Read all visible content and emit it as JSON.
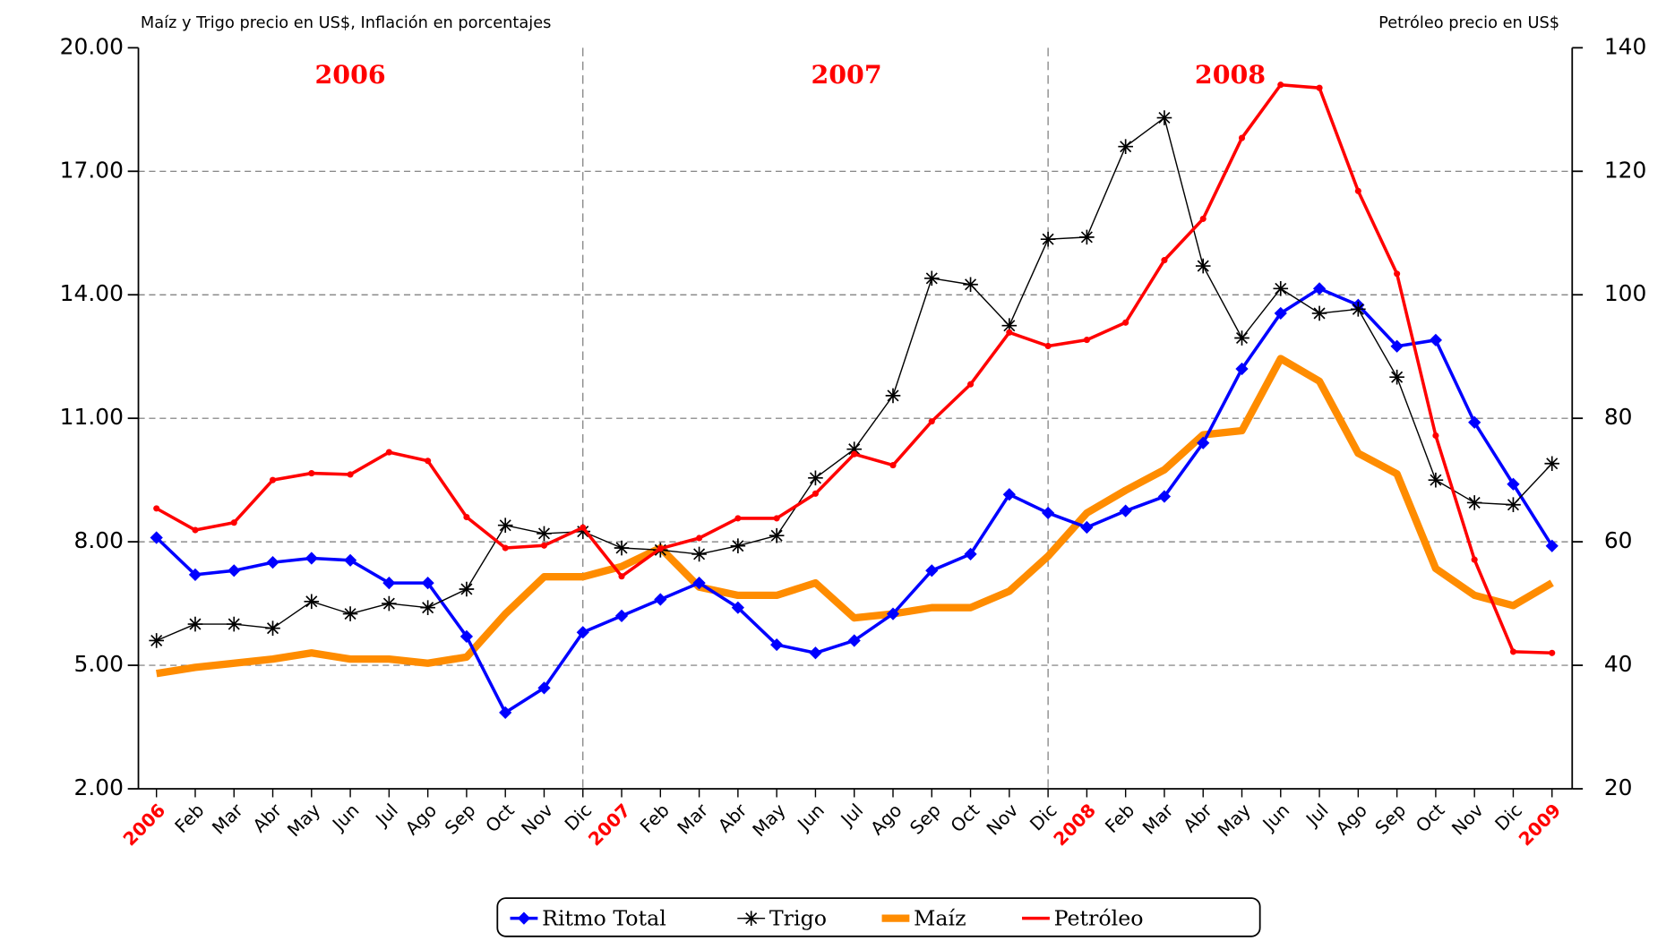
{
  "chart_data": {
    "type": "line",
    "ylabel": "Maíz y Trigo precio en US$, Inflación en porcentajes",
    "y2label": "Petróleo precio en US$",
    "annotations": [
      {
        "text": "2006",
        "category": 5
      },
      {
        "text": "2007",
        "category": 17.8
      },
      {
        "text": "2008",
        "category": 27.7
      }
    ],
    "annotation_color": "#ff0000",
    "year_label_color": "#ff0000",
    "categories": [
      "2006",
      "Feb",
      "Mar",
      "Abr",
      "May",
      "Jun",
      "Jul",
      "Ago",
      "Sep",
      "Oct",
      "Nov",
      "Dic",
      "2007",
      "Feb",
      "Mar",
      "Abr",
      "May",
      "Jun",
      "Jul",
      "Ago",
      "Sep",
      "Oct",
      "Nov",
      "Dic",
      "2008",
      "Feb",
      "Mar",
      "Abr",
      "May",
      "Jun",
      "Jul",
      "Ago",
      "Sep",
      "Oct",
      "Nov",
      "Dic",
      "2009"
    ],
    "year_dividers": [
      11,
      23
    ],
    "ylim": [
      2,
      20
    ],
    "yticks": [
      {
        "value": 2,
        "label": "2.00"
      },
      {
        "value": 5,
        "label": "5.00"
      },
      {
        "value": 8,
        "label": "8.00"
      },
      {
        "value": 11,
        "label": "11.00"
      },
      {
        "value": 14,
        "label": "14.00"
      },
      {
        "value": 17,
        "label": "17.00"
      },
      {
        "value": 20,
        "label": "20.00"
      }
    ],
    "y2lim": [
      20,
      140
    ],
    "y2ticks": [
      20,
      40,
      60,
      80,
      100,
      120,
      140
    ],
    "grid": true,
    "legend": "bottom",
    "series": [
      {
        "name": "Ritmo Total",
        "color": "#0000ff",
        "marker": "diamond",
        "width": 3,
        "values": [
          8.1,
          7.2,
          7.3,
          7.5,
          7.6,
          7.55,
          7.0,
          7.0,
          5.7,
          3.85,
          4.45,
          5.8,
          6.2,
          6.6,
          7.0,
          6.4,
          5.5,
          5.3,
          5.6,
          6.25,
          7.3,
          7.7,
          9.15,
          8.7,
          8.35,
          8.75,
          9.1,
          10.4,
          12.2,
          13.55,
          14.15,
          13.75,
          12.75,
          12.9,
          10.9,
          9.4,
          7.9
        ]
      },
      {
        "name": "Trigo",
        "color": "#000000",
        "marker": "asterisk",
        "width": 1.2,
        "values": [
          5.6,
          6.0,
          6.0,
          5.9,
          6.55,
          6.25,
          6.5,
          6.4,
          6.85,
          8.4,
          8.2,
          8.25,
          7.85,
          7.8,
          7.7,
          7.9,
          8.15,
          9.55,
          10.25,
          11.55,
          14.4,
          14.25,
          13.25,
          15.35,
          15.4,
          17.6,
          18.3,
          14.7,
          12.95,
          14.15,
          13.55,
          13.65,
          12.0,
          9.5,
          8.95,
          8.9,
          9.9
        ]
      },
      {
        "name": "Maíz",
        "color": "#ff8c00",
        "marker": "none",
        "width": 7,
        "values": [
          4.8,
          4.95,
          5.05,
          5.15,
          5.3,
          5.15,
          5.15,
          5.05,
          5.2,
          6.25,
          7.15,
          7.15,
          7.4,
          7.85,
          6.9,
          6.7,
          6.7,
          7.0,
          6.15,
          6.25,
          6.4,
          6.4,
          6.8,
          7.65,
          8.7,
          9.25,
          9.75,
          10.6,
          10.7,
          12.45,
          11.9,
          10.15,
          9.65,
          7.35,
          6.7,
          6.45,
          7.0
        ]
      },
      {
        "name": "Petróleo",
        "color": "#ff0000",
        "marker": "dot",
        "width": 3,
        "axis": "y2",
        "values": [
          65.4,
          61.9,
          63.1,
          70.0,
          71.1,
          70.9,
          74.5,
          73.1,
          64.0,
          59.0,
          59.4,
          62.3,
          54.4,
          58.9,
          60.6,
          63.8,
          63.8,
          67.8,
          74.2,
          72.4,
          79.5,
          85.5,
          93.9,
          91.7,
          92.7,
          95.5,
          105.6,
          112.3,
          125.4,
          134.0,
          133.5,
          116.8,
          103.4,
          77.2,
          57.1,
          42.2,
          42.0
        ]
      }
    ]
  }
}
